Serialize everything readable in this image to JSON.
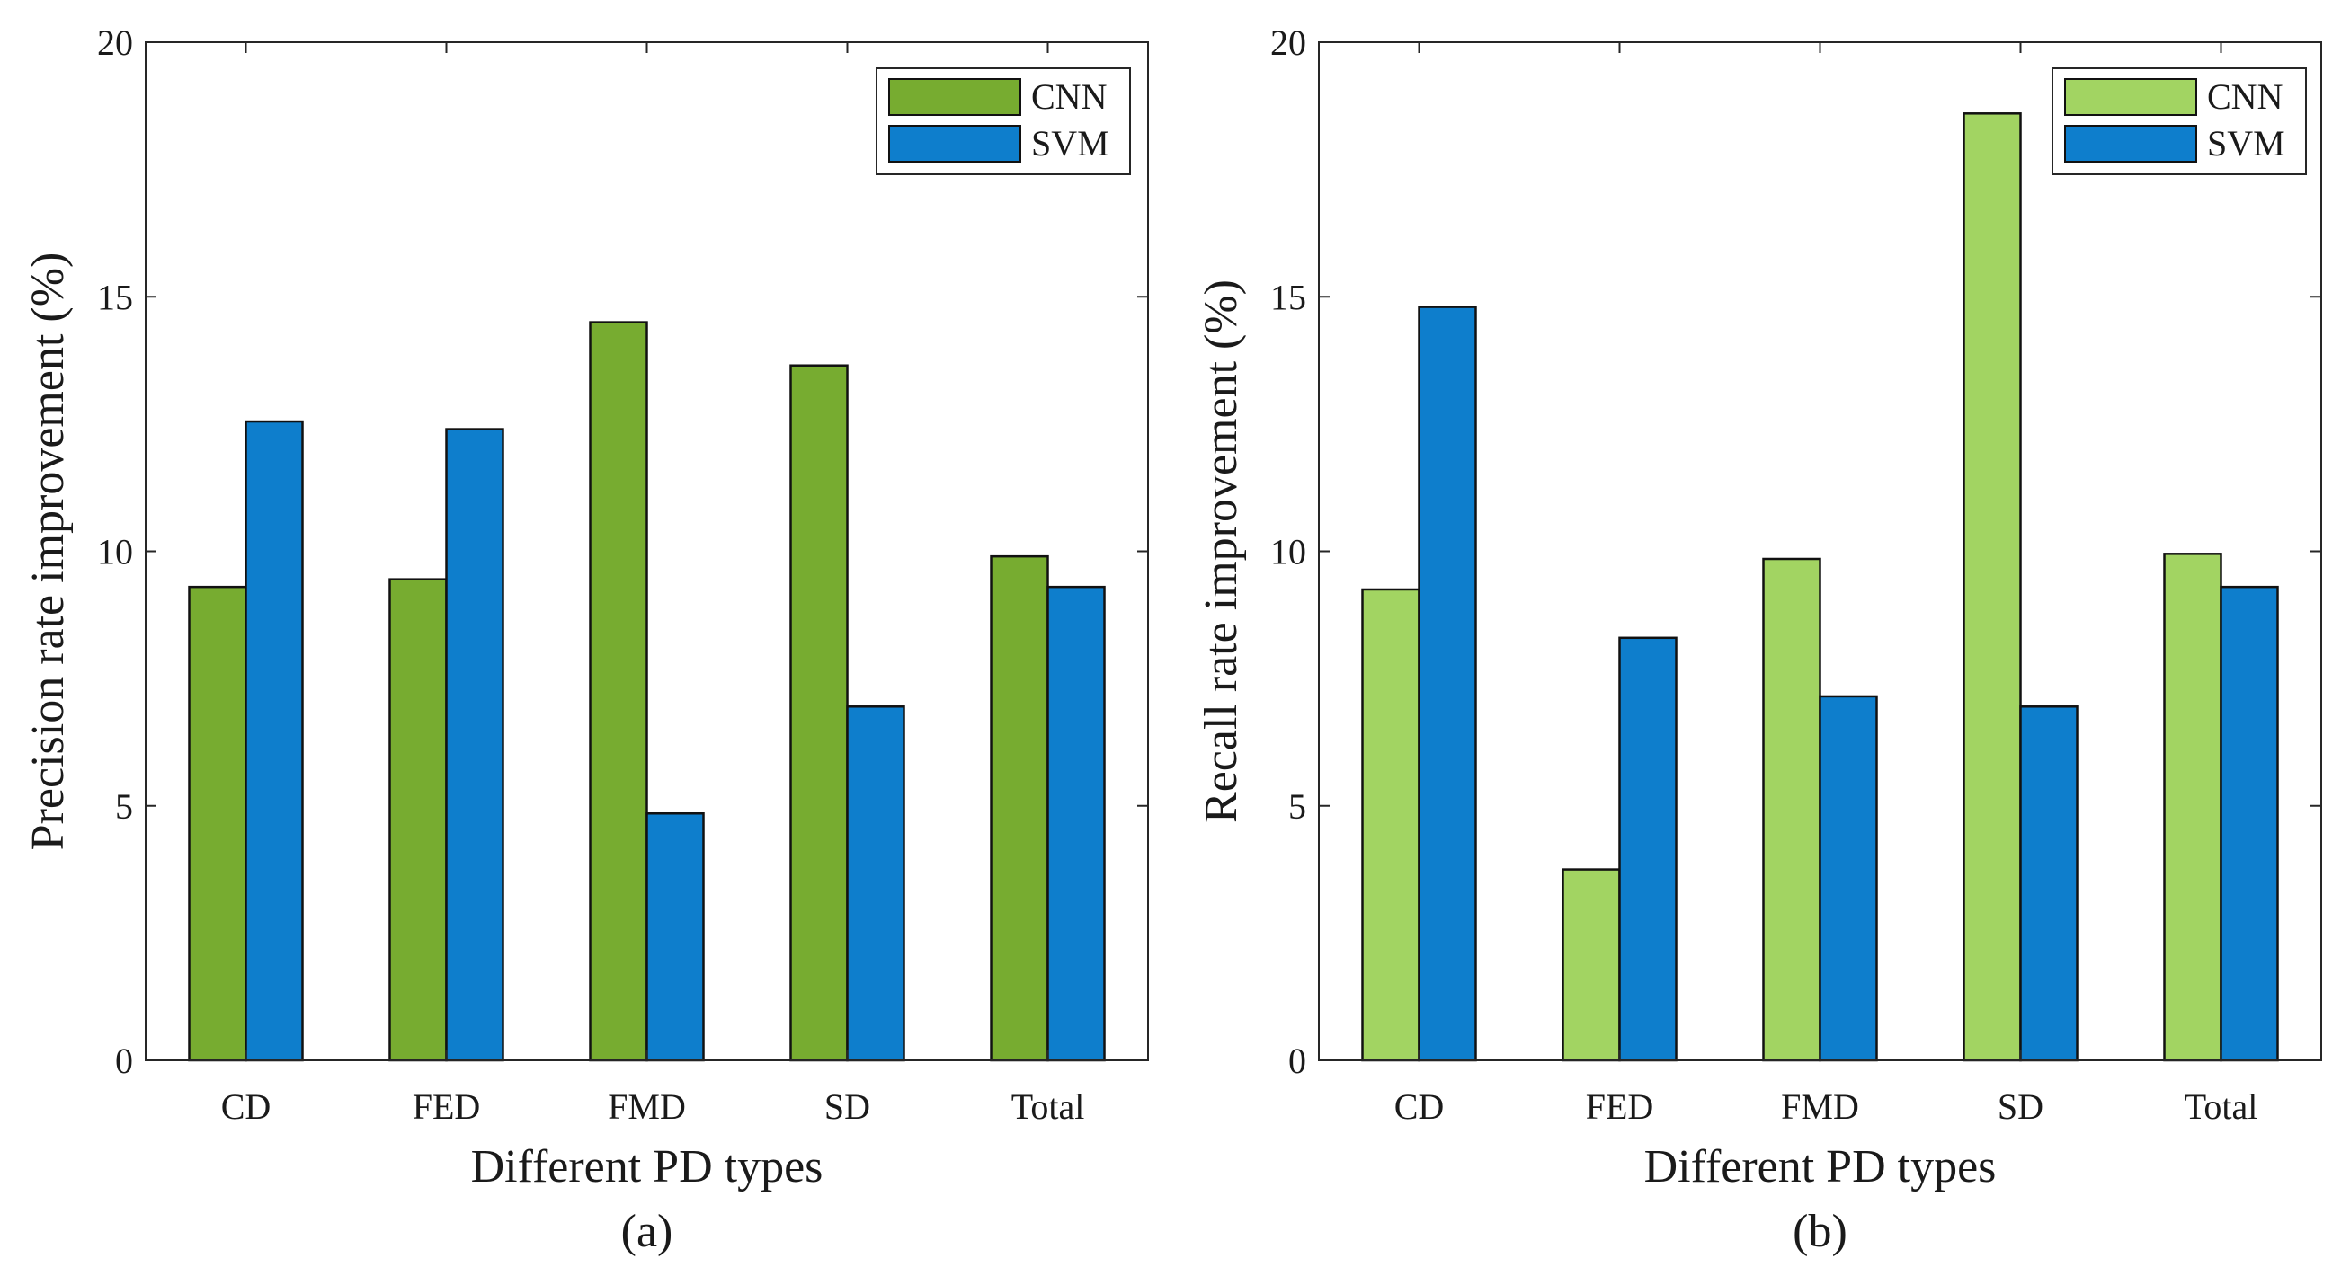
{
  "chart_data": [
    {
      "type": "bar",
      "panel_caption": "(a)",
      "title": "",
      "xlabel": "Different PD types",
      "ylabel": "Precision rate improvement (%)",
      "categories": [
        "CD",
        "FED",
        "FMD",
        "SD",
        "Total"
      ],
      "ylim": [
        0,
        20
      ],
      "yticks": [
        0,
        5,
        10,
        15,
        20
      ],
      "grid": false,
      "legend_position": "top-right",
      "series": [
        {
          "name": "CNN",
          "color": "#77ac30",
          "values": [
            9.3,
            9.45,
            14.5,
            13.65,
            9.9
          ]
        },
        {
          "name": "SVM",
          "color": "#0e7ecc",
          "values": [
            12.55,
            12.4,
            4.85,
            6.95,
            9.3
          ]
        }
      ]
    },
    {
      "type": "bar",
      "panel_caption": "(b)",
      "title": "",
      "xlabel": "Different PD types",
      "ylabel": "Recall rate improvement (%)",
      "categories": [
        "CD",
        "FED",
        "FMD",
        "SD",
        "Total"
      ],
      "ylim": [
        0,
        20
      ],
      "yticks": [
        0,
        5,
        10,
        15,
        20
      ],
      "grid": false,
      "legend_position": "top-right",
      "series": [
        {
          "name": "CNN",
          "color": "#a2d462",
          "values": [
            9.25,
            3.75,
            9.85,
            18.6,
            9.95
          ]
        },
        {
          "name": "SVM",
          "color": "#0e7ecc",
          "values": [
            14.8,
            8.3,
            7.15,
            6.95,
            9.3
          ]
        }
      ]
    }
  ]
}
